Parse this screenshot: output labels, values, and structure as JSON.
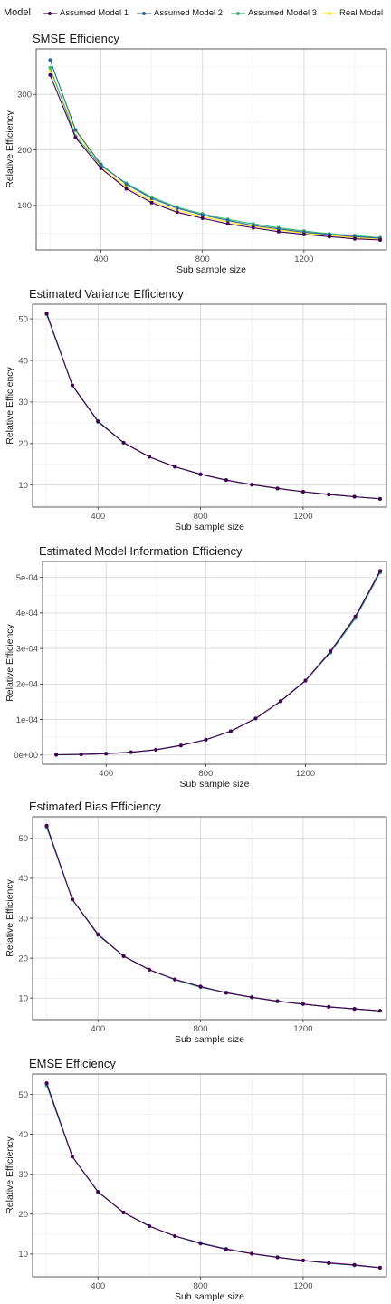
{
  "legend": {
    "title": "Model",
    "position": "top",
    "entries": [
      {
        "name": "Assumed Model 1",
        "color": "#440154"
      },
      {
        "name": "Assumed Model 2",
        "color": "#31688e"
      },
      {
        "name": "Assumed Model 3",
        "color": "#35b779"
      },
      {
        "name": "Real Model",
        "color": "#fde725"
      }
    ]
  },
  "chart_data": [
    {
      "type": "line",
      "title": "SMSE Efficiency",
      "xlabel": "Sub sample size",
      "ylabel": "Relative Efficiency",
      "xlim": [
        145,
        1525
      ],
      "ylim": [
        20,
        382
      ],
      "xticks": [
        400,
        800,
        1200
      ],
      "yticks": [
        100,
        200,
        300
      ],
      "grid": true,
      "x": [
        200,
        300,
        400,
        500,
        600,
        700,
        800,
        900,
        1000,
        1100,
        1200,
        1300,
        1400,
        1500
      ],
      "series": [
        {
          "name": "Assumed Model 1",
          "values": [
            335,
            222,
            167,
            130,
            105,
            88,
            77,
            67,
            60,
            53,
            48,
            44,
            40,
            38
          ]
        },
        {
          "name": "Assumed Model 2",
          "values": [
            362,
            236,
            174,
            138,
            113,
            95,
            83,
            73,
            64,
            58,
            52,
            48,
            44,
            41
          ]
        },
        {
          "name": "Assumed Model 3",
          "values": [
            348,
            225,
            172,
            140,
            115,
            97,
            85,
            75,
            67,
            60,
            54,
            49,
            46,
            42
          ]
        },
        {
          "name": "Real Model",
          "values": [
            342,
            235,
            168,
            133,
            108,
            91,
            80,
            70,
            62,
            56,
            50,
            46,
            42,
            39
          ]
        }
      ]
    },
    {
      "type": "line",
      "title": "Estimated Variance Efficiency",
      "xlabel": "Sub sample size",
      "ylabel": "Relative Efficiency",
      "xlim": [
        145,
        1525
      ],
      "ylim": [
        4.7,
        53.5
      ],
      "xticks": [
        400,
        800,
        1200
      ],
      "yticks": [
        10,
        20,
        30,
        40,
        50
      ],
      "grid": true,
      "x": [
        200,
        300,
        400,
        500,
        600,
        700,
        800,
        900,
        1000,
        1100,
        1200,
        1300,
        1400,
        1500
      ],
      "series": [
        {
          "name": "Assumed Model 1",
          "values": [
            51.3,
            34.0,
            25.3,
            20.2,
            16.8,
            14.4,
            12.6,
            11.2,
            10.1,
            9.2,
            8.4,
            7.7,
            7.2,
            6.7
          ]
        },
        {
          "name": "Assumed Model 2",
          "values": [
            51.2,
            34.0,
            25.4,
            20.2,
            16.8,
            14.4,
            12.6,
            11.2,
            10.1,
            9.2,
            8.4,
            7.8,
            7.2,
            6.7
          ]
        },
        {
          "name": "Assumed Model 3",
          "values": [
            51.0,
            34.0,
            25.2,
            20.2,
            16.8,
            14.4,
            12.6,
            11.2,
            10.1,
            9.2,
            8.4,
            7.8,
            7.2,
            6.7
          ]
        },
        {
          "name": "Real Model",
          "values": [
            51.1,
            34.0,
            25.3,
            20.2,
            16.8,
            14.4,
            12.6,
            11.2,
            10.1,
            9.2,
            8.4,
            7.8,
            7.2,
            6.7
          ]
        }
      ]
    },
    {
      "type": "line",
      "title": "Estimated Model Information Efficiency",
      "xlabel": "Sub sample size",
      "ylabel": "Relative Efficiency",
      "xlim": [
        145,
        1525
      ],
      "ylim": [
        -2.6e-05,
        0.000545
      ],
      "xticks": [
        400,
        800,
        1200
      ],
      "yticks": [
        0,
        0.0001,
        0.0002,
        0.0003,
        0.0004,
        0.0005
      ],
      "ytick_labels": [
        "0e+00",
        "1e-04",
        "2e-04",
        "3e-04",
        "4e-04",
        "5e-04"
      ],
      "grid": true,
      "x": [
        200,
        300,
        400,
        500,
        600,
        700,
        800,
        900,
        1000,
        1100,
        1200,
        1300,
        1400,
        1500
      ],
      "series": [
        {
          "name": "Assumed Model 1",
          "values": [
            8e-07,
            1.9e-06,
            4e-06,
            8e-06,
            1.5e-05,
            2.7e-05,
            4.3e-05,
            6.7e-05,
            0.000103,
            0.000152,
            0.00021,
            0.000292,
            0.00039,
            0.000519
          ]
        },
        {
          "name": "Assumed Model 2",
          "values": [
            8e-07,
            1.9e-06,
            4e-06,
            8e-06,
            1.5e-05,
            2.7e-05,
            4.3e-05,
            6.7e-05,
            0.000103,
            0.000151,
            0.000209,
            0.00029,
            0.000387,
            0.000516
          ]
        },
        {
          "name": "Assumed Model 3",
          "values": [
            8e-07,
            1.9e-06,
            4e-06,
            8e-06,
            1.5e-05,
            2.7e-05,
            4.3e-05,
            6.7e-05,
            0.000103,
            0.000151,
            0.000209,
            0.000288,
            0.000385,
            0.000514
          ]
        },
        {
          "name": "Real Model",
          "values": [
            8e-07,
            1.9e-06,
            4e-06,
            8e-06,
            1.5e-05,
            2.7e-05,
            4.3e-05,
            6.7e-05,
            0.000103,
            0.000151,
            0.000209,
            0.00029,
            0.000388,
            0.000517
          ]
        }
      ]
    },
    {
      "type": "line",
      "title": "Estimated Bias Efficiency",
      "xlabel": "Sub sample size",
      "ylabel": "Relative Efficiency",
      "xlim": [
        145,
        1525
      ],
      "ylim": [
        4.6,
        55.4
      ],
      "xticks": [
        400,
        800,
        1200
      ],
      "yticks": [
        10,
        20,
        30,
        40,
        50
      ],
      "grid": true,
      "x": [
        200,
        300,
        400,
        500,
        600,
        700,
        800,
        900,
        1000,
        1100,
        1200,
        1300,
        1400,
        1500
      ],
      "series": [
        {
          "name": "Assumed Model 1",
          "values": [
            53.2,
            34.7,
            25.9,
            20.5,
            17.1,
            14.7,
            12.9,
            11.3,
            10.2,
            9.2,
            8.5,
            7.8,
            7.3,
            6.8
          ]
        },
        {
          "name": "Assumed Model 2",
          "values": [
            53.0,
            34.7,
            26.0,
            20.5,
            17.1,
            14.6,
            12.8,
            11.4,
            10.2,
            9.2,
            8.5,
            7.8,
            7.3,
            6.8
          ]
        },
        {
          "name": "Assumed Model 3",
          "values": [
            52.7,
            34.7,
            25.8,
            20.5,
            17.1,
            14.6,
            12.7,
            11.4,
            10.2,
            9.3,
            8.5,
            7.8,
            7.3,
            6.8
          ]
        },
        {
          "name": "Real Model",
          "values": [
            52.9,
            34.7,
            25.9,
            20.5,
            17.1,
            14.6,
            12.8,
            11.4,
            10.2,
            9.2,
            8.5,
            7.8,
            7.3,
            6.8
          ]
        }
      ]
    },
    {
      "type": "line",
      "title": "EMSE Efficiency",
      "xlabel": "Sub sample size",
      "ylabel": "Relative Efficiency",
      "xlim": [
        145,
        1525
      ],
      "ylim": [
        4.3,
        55.1
      ],
      "xticks": [
        400,
        800,
        1200
      ],
      "yticks": [
        10,
        20,
        30,
        40,
        50
      ],
      "grid": true,
      "x": [
        200,
        300,
        400,
        500,
        600,
        700,
        800,
        900,
        1000,
        1100,
        1200,
        1300,
        1400,
        1500
      ],
      "series": [
        {
          "name": "Assumed Model 1",
          "values": [
            52.8,
            34.4,
            25.6,
            20.4,
            17.0,
            14.5,
            12.7,
            11.2,
            10.1,
            9.2,
            8.4,
            7.8,
            7.3,
            6.6
          ]
        },
        {
          "name": "Assumed Model 2",
          "values": [
            52.6,
            34.4,
            25.6,
            20.4,
            17.0,
            14.5,
            12.8,
            11.3,
            10.1,
            9.2,
            8.4,
            7.7,
            7.2,
            6.6
          ]
        },
        {
          "name": "Assumed Model 3",
          "values": [
            52.2,
            34.4,
            25.5,
            20.4,
            17.0,
            14.5,
            12.6,
            11.3,
            10.1,
            9.2,
            8.4,
            7.7,
            7.2,
            6.6
          ]
        },
        {
          "name": "Real Model",
          "values": [
            52.5,
            34.4,
            25.6,
            20.4,
            17.0,
            14.5,
            12.7,
            11.3,
            10.1,
            9.2,
            8.4,
            7.7,
            7.2,
            6.6
          ]
        }
      ]
    }
  ]
}
